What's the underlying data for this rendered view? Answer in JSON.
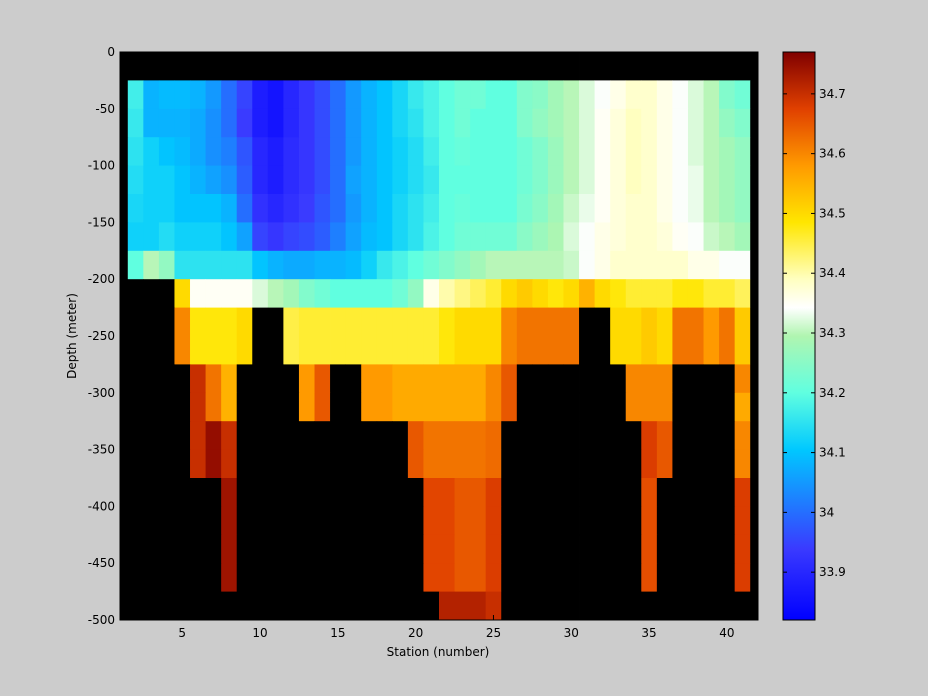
{
  "chart_data": {
    "type": "heatmap",
    "title": "",
    "xlabel": "Station (number)",
    "ylabel": "Depth (meter)",
    "xlim": [
      1,
      42
    ],
    "ylim": [
      -500,
      0
    ],
    "xticks": [
      5,
      10,
      15,
      20,
      25,
      30,
      35,
      40
    ],
    "yticks": [
      0,
      -50,
      -100,
      -150,
      -200,
      -250,
      -300,
      -350,
      -400,
      -450,
      -500
    ],
    "colorbar": {
      "range": [
        33.82,
        34.77
      ],
      "ticks": [
        33.9,
        34,
        34.1,
        34.2,
        34.3,
        34.4,
        34.5,
        34.6,
        34.7
      ],
      "colormap": "jet"
    },
    "cell_layout": {
      "first_station": 1,
      "station_step": 1,
      "first_depth": 0,
      "depth_step": 25,
      "note": "rows: depth bins top to bottom, columns: stations; null = no data (black)"
    },
    "z": [
      [
        null,
        null,
        null,
        null,
        null,
        null,
        null,
        null,
        null,
        null,
        null,
        null,
        null,
        null,
        null,
        null,
        null,
        null,
        null,
        null,
        null,
        null,
        null,
        null,
        null,
        null,
        null,
        null,
        null,
        null,
        null,
        null,
        null,
        null,
        null,
        null,
        null,
        null,
        null,
        null,
        null,
        null
      ],
      [
        null,
        34.17,
        34.08,
        34.09,
        34.09,
        34.08,
        34.05,
        34.0,
        33.95,
        33.88,
        33.86,
        33.9,
        33.93,
        33.96,
        34.0,
        34.05,
        34.08,
        34.1,
        34.13,
        34.16,
        34.18,
        34.2,
        34.22,
        34.22,
        34.2,
        34.2,
        34.24,
        34.25,
        34.28,
        34.3,
        34.32,
        34.34,
        34.36,
        34.38,
        34.38,
        34.36,
        34.34,
        34.32,
        34.3,
        34.24,
        34.22,
        null
      ],
      [
        null,
        34.16,
        34.08,
        34.08,
        34.08,
        34.07,
        34.04,
        34.0,
        33.94,
        33.88,
        33.86,
        33.9,
        33.93,
        33.96,
        34.0,
        34.05,
        34.08,
        34.1,
        34.13,
        34.15,
        34.18,
        34.2,
        34.22,
        34.2,
        34.2,
        34.2,
        34.24,
        34.26,
        34.28,
        34.3,
        34.32,
        34.35,
        34.37,
        34.39,
        34.38,
        34.36,
        34.34,
        34.32,
        34.3,
        34.26,
        34.24,
        null
      ],
      [
        null,
        34.15,
        34.12,
        34.1,
        34.09,
        34.07,
        34.04,
        34.02,
        33.97,
        33.9,
        33.88,
        33.91,
        33.93,
        33.96,
        34.0,
        34.05,
        34.08,
        34.1,
        34.12,
        34.14,
        34.17,
        34.2,
        34.21,
        34.2,
        34.2,
        34.2,
        34.22,
        34.24,
        34.27,
        34.3,
        34.32,
        34.35,
        34.37,
        34.39,
        34.38,
        34.36,
        34.34,
        34.32,
        34.3,
        34.28,
        34.26,
        null
      ],
      [
        null,
        34.14,
        34.12,
        34.12,
        34.1,
        34.08,
        34.06,
        34.04,
        33.98,
        33.9,
        33.88,
        33.91,
        33.93,
        33.96,
        34.0,
        34.06,
        34.08,
        34.1,
        34.12,
        34.14,
        34.16,
        34.2,
        34.2,
        34.2,
        34.2,
        34.2,
        34.22,
        34.24,
        34.27,
        34.3,
        34.32,
        34.35,
        34.37,
        34.39,
        34.38,
        34.36,
        34.34,
        34.33,
        34.3,
        34.28,
        34.26,
        null
      ],
      [
        null,
        34.13,
        34.12,
        34.12,
        34.1,
        34.1,
        34.1,
        34.08,
        34.0,
        33.92,
        33.9,
        33.92,
        33.94,
        33.97,
        34.0,
        34.05,
        34.08,
        34.1,
        34.13,
        34.15,
        34.17,
        34.2,
        34.21,
        34.2,
        34.2,
        34.2,
        34.23,
        34.25,
        34.28,
        34.31,
        34.33,
        34.35,
        34.37,
        34.38,
        34.38,
        34.36,
        34.34,
        34.33,
        34.3,
        34.28,
        34.26,
        null
      ],
      [
        null,
        34.12,
        34.12,
        34.14,
        34.12,
        34.12,
        34.12,
        34.1,
        34.06,
        33.95,
        33.93,
        33.95,
        33.96,
        33.98,
        34.02,
        34.06,
        34.09,
        34.1,
        34.13,
        34.15,
        34.18,
        34.2,
        34.22,
        34.22,
        34.22,
        34.22,
        34.25,
        34.27,
        34.29,
        34.32,
        34.34,
        34.36,
        34.37,
        34.38,
        34.38,
        34.37,
        34.35,
        34.34,
        34.31,
        34.3,
        34.28,
        null
      ],
      [
        null,
        34.2,
        34.3,
        34.26,
        34.15,
        34.15,
        34.15,
        34.15,
        34.15,
        34.1,
        34.08,
        34.07,
        34.07,
        34.08,
        34.08,
        34.09,
        34.12,
        34.16,
        34.18,
        34.2,
        34.22,
        34.24,
        34.26,
        34.28,
        34.3,
        34.3,
        34.3,
        34.3,
        34.3,
        34.31,
        34.34,
        34.36,
        34.38,
        34.38,
        34.38,
        34.38,
        34.38,
        34.36,
        34.36,
        34.34,
        34.34,
        null
      ],
      [
        null,
        null,
        null,
        null,
        34.5,
        34.35,
        34.35,
        34.35,
        34.35,
        34.32,
        34.3,
        34.28,
        34.24,
        34.22,
        34.2,
        34.2,
        34.2,
        34.2,
        34.22,
        34.26,
        34.36,
        34.4,
        34.42,
        34.44,
        34.46,
        34.5,
        34.52,
        34.5,
        34.48,
        34.5,
        34.55,
        34.5,
        34.48,
        34.46,
        34.46,
        34.46,
        34.48,
        34.48,
        34.46,
        34.46,
        34.44,
        null
      ],
      [
        null,
        null,
        null,
        null,
        34.6,
        34.48,
        34.48,
        34.48,
        34.5,
        null,
        null,
        34.45,
        34.46,
        34.46,
        34.46,
        34.46,
        34.46,
        34.46,
        34.46,
        34.46,
        34.46,
        34.48,
        34.5,
        34.5,
        34.5,
        34.6,
        34.62,
        34.62,
        34.62,
        34.62,
        null,
        null,
        34.5,
        34.5,
        34.52,
        34.5,
        34.62,
        34.62,
        34.58,
        34.62,
        34.52,
        null
      ],
      [
        null,
        null,
        null,
        null,
        34.6,
        34.48,
        34.48,
        34.48,
        34.5,
        null,
        null,
        34.45,
        34.46,
        34.46,
        34.46,
        34.46,
        34.46,
        34.46,
        34.46,
        34.46,
        34.46,
        34.48,
        34.5,
        34.5,
        34.5,
        34.6,
        34.62,
        34.62,
        34.62,
        34.62,
        null,
        null,
        34.5,
        34.5,
        34.52,
        34.5,
        34.62,
        34.62,
        34.58,
        34.62,
        34.52,
        null
      ],
      [
        null,
        null,
        null,
        null,
        null,
        34.7,
        34.62,
        34.55,
        null,
        null,
        null,
        null,
        34.58,
        34.65,
        null,
        null,
        34.58,
        34.58,
        34.56,
        34.56,
        34.56,
        34.56,
        34.56,
        34.56,
        34.6,
        34.65,
        null,
        null,
        null,
        null,
        null,
        null,
        null,
        34.6,
        34.6,
        34.6,
        null,
        null,
        null,
        null,
        34.6,
        null
      ],
      [
        null,
        null,
        null,
        null,
        null,
        34.7,
        34.62,
        34.55,
        null,
        null,
        null,
        null,
        34.58,
        34.65,
        null,
        null,
        34.58,
        34.58,
        34.56,
        34.56,
        34.56,
        34.56,
        34.56,
        34.56,
        34.6,
        34.65,
        null,
        null,
        null,
        null,
        null,
        null,
        null,
        34.6,
        34.6,
        34.6,
        null,
        null,
        null,
        null,
        34.56,
        null
      ],
      [
        null,
        null,
        null,
        null,
        null,
        34.7,
        34.75,
        34.7,
        null,
        null,
        null,
        null,
        null,
        null,
        null,
        null,
        null,
        null,
        null,
        34.65,
        34.62,
        34.62,
        34.62,
        34.62,
        34.63,
        null,
        null,
        null,
        null,
        null,
        null,
        null,
        null,
        null,
        34.68,
        34.65,
        null,
        null,
        null,
        null,
        34.6,
        null
      ],
      [
        null,
        null,
        null,
        null,
        null,
        34.7,
        34.75,
        34.7,
        null,
        null,
        null,
        null,
        null,
        null,
        null,
        null,
        null,
        null,
        null,
        34.65,
        34.62,
        34.62,
        34.62,
        34.62,
        34.63,
        null,
        null,
        null,
        null,
        null,
        null,
        null,
        null,
        null,
        34.68,
        34.65,
        null,
        null,
        null,
        null,
        34.6,
        null
      ],
      [
        null,
        null,
        null,
        null,
        null,
        null,
        null,
        34.74,
        null,
        null,
        null,
        null,
        null,
        null,
        null,
        null,
        null,
        null,
        null,
        null,
        34.67,
        34.67,
        34.65,
        34.65,
        34.68,
        null,
        null,
        null,
        null,
        null,
        null,
        null,
        null,
        null,
        34.66,
        null,
        null,
        null,
        null,
        null,
        34.68,
        null
      ],
      [
        null,
        null,
        null,
        null,
        null,
        null,
        null,
        34.74,
        null,
        null,
        null,
        null,
        null,
        null,
        null,
        null,
        null,
        null,
        null,
        null,
        34.67,
        34.67,
        34.65,
        34.65,
        34.68,
        null,
        null,
        null,
        null,
        null,
        null,
        null,
        null,
        null,
        34.66,
        null,
        null,
        null,
        null,
        null,
        34.68,
        null
      ],
      [
        null,
        null,
        null,
        null,
        null,
        null,
        null,
        34.74,
        null,
        null,
        null,
        null,
        null,
        null,
        null,
        null,
        null,
        null,
        null,
        null,
        34.67,
        34.67,
        34.65,
        34.65,
        34.68,
        null,
        null,
        null,
        null,
        null,
        null,
        null,
        null,
        null,
        34.66,
        null,
        null,
        null,
        null,
        null,
        34.68,
        null
      ],
      [
        null,
        null,
        null,
        null,
        null,
        null,
        null,
        34.74,
        null,
        null,
        null,
        null,
        null,
        null,
        null,
        null,
        null,
        null,
        null,
        null,
        34.67,
        34.67,
        34.65,
        34.65,
        34.68,
        null,
        null,
        null,
        null,
        null,
        null,
        null,
        null,
        null,
        34.66,
        null,
        null,
        null,
        null,
        null,
        34.68,
        null
      ],
      [
        null,
        null,
        null,
        null,
        null,
        null,
        null,
        null,
        null,
        null,
        null,
        null,
        null,
        null,
        null,
        null,
        null,
        null,
        null,
        null,
        null,
        34.72,
        34.72,
        34.72,
        34.7,
        null,
        null,
        null,
        null,
        null,
        null,
        null,
        null,
        null,
        null,
        null,
        null,
        null,
        null,
        null,
        null,
        null
      ],
      [
        null,
        null,
        null,
        null,
        null,
        null,
        null,
        null,
        null,
        null,
        null,
        null,
        null,
        null,
        null,
        null,
        null,
        null,
        null,
        null,
        null,
        34.72,
        34.72,
        34.72,
        34.7,
        null,
        null,
        null,
        null,
        null,
        null,
        null,
        null,
        null,
        null,
        null,
        null,
        null,
        null,
        null,
        null,
        null
      ],
      [
        null,
        null,
        null,
        null,
        null,
        null,
        null,
        null,
        null,
        null,
        null,
        null,
        null,
        null,
        null,
        null,
        null,
        null,
        null,
        null,
        null,
        34.72,
        34.72,
        34.72,
        34.7,
        null,
        null,
        null,
        null,
        null,
        null,
        null,
        null,
        null,
        null,
        null,
        null,
        null,
        null,
        null,
        null,
        null
      ],
      [
        null,
        null,
        null,
        null,
        null,
        null,
        null,
        null,
        null,
        null,
        null,
        null,
        null,
        null,
        null,
        null,
        null,
        null,
        null,
        null,
        null,
        34.72,
        34.72,
        34.72,
        34.7,
        null,
        null,
        null,
        null,
        null,
        null,
        null,
        null,
        null,
        null,
        null,
        null,
        null,
        null,
        null,
        null,
        null
      ]
    ]
  }
}
